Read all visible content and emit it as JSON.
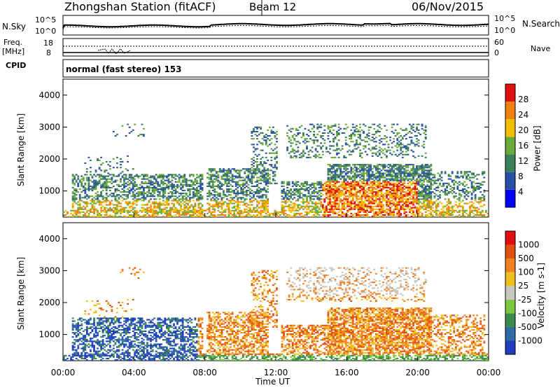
{
  "header": {
    "title": "Zhongshan Station (fitACF)",
    "beam": "Beam 12",
    "date": "06/Nov/2015"
  },
  "status_panels": {
    "nsky_label": "N.Sky",
    "nsky_ticks": [
      "10^5",
      "10^0"
    ],
    "nsearch_label": "N.Search",
    "nsearch_ticks": [
      "10^5",
      "10^0"
    ],
    "freq_label_top": "Freq.",
    "freq_label_unit": "[MHz]",
    "freq_ticks": [
      "18",
      "8"
    ],
    "nave_label": "Nave",
    "nave_ticks": [
      "60",
      "0"
    ],
    "cpid_label": "CPID",
    "cpid_text": "normal (fast stereo) 153"
  },
  "chart_data": [
    {
      "type": "heatmap",
      "title": "",
      "xlabel": "Time UT",
      "ylabel": "Slant Range [km]",
      "xlim": [
        0,
        24
      ],
      "ylim": [
        180,
        4500
      ],
      "x_tick_labels": [
        "00:00",
        "04:00",
        "08:00",
        "12:00",
        "16:00",
        "20:00",
        "00:00"
      ],
      "y_tick_labels": [
        "1000",
        "2000",
        "3000",
        "4000"
      ],
      "grid": false,
      "colorbar": {
        "label": "Power [dB]",
        "tick_labels": [
          "28",
          "24",
          "20",
          "16",
          "12",
          "8",
          "4"
        ],
        "range": [
          0,
          30
        ],
        "colors": [
          "#0000ff",
          "#2850a8",
          "#3a7e5a",
          "#6aaa3a",
          "#f0c000",
          "#f08010",
          "#e01010"
        ]
      }
    },
    {
      "type": "heatmap",
      "title": "",
      "xlabel": "Time UT",
      "ylabel": "Slant Range [km]",
      "xlim": [
        0,
        24
      ],
      "ylim": [
        180,
        4500
      ],
      "x_tick_labels": [
        "00:00",
        "04:00",
        "08:00",
        "12:00",
        "16:00",
        "20:00",
        "00:00"
      ],
      "y_tick_labels": [
        "1000",
        "2000",
        "3000",
        "4000"
      ],
      "grid": false,
      "colorbar": {
        "label": "Velocity [m s-1]",
        "tick_labels": [
          "1000",
          "500",
          "100",
          "25",
          "-25",
          "-100",
          "-500",
          "-1000"
        ],
        "range": [
          -1000,
          1000
        ],
        "colors": [
          "#1f3fc0",
          "#2f6aa8",
          "#3a8a4a",
          "#7ac840",
          "#c8c8c0",
          "#f0c020",
          "#f08020",
          "#e05010",
          "#e01010"
        ]
      }
    }
  ],
  "time_axis_label": "Time UT"
}
